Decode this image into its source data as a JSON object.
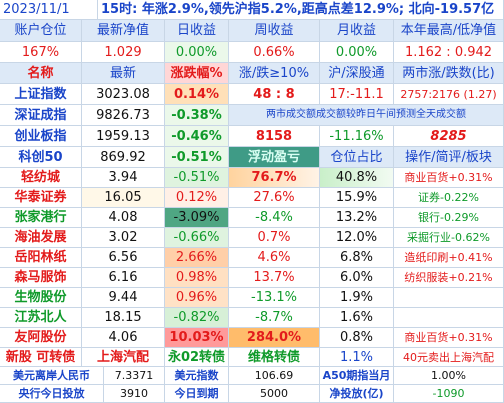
{
  "header": {
    "date": "2023/11/1",
    "summary": "15时: 年涨2.9%,领先沪指5.2%,距高点差12.9%; 北向-19.57亿"
  },
  "account": {
    "headers": [
      "账户仓位",
      "最新净值",
      "日收益",
      "周收益",
      "月收益",
      "本年最高/低净值"
    ],
    "values": [
      "167%",
      "1.029",
      "0.00%",
      "0.66%",
      "0.00%",
      "1.162 : 0.942"
    ]
  },
  "index_header": {
    "name": "名称",
    "latest": "最新",
    "change": "涨跌幅%",
    "updown10": "涨/跌≥10%",
    "hs_link": "沪/深股通",
    "two_markets": "两市涨/跌数(比)"
  },
  "indices": [
    {
      "name": "上证指数",
      "value": "3023.08",
      "change": "0.14%",
      "col4": "48 : 8",
      "col5": "17:-11.1",
      "col6": "2757:2176 (1.27)"
    },
    {
      "name": "深证成指",
      "value": "9826.73",
      "change": "-0.38%",
      "col4": "两市成交额成交额较昨日午间预测全天成交额"
    },
    {
      "name": "创业板指",
      "value": "1959.13",
      "change": "-0.46%",
      "col4": "8158",
      "col5": "-11.16%",
      "col6": "8285"
    },
    {
      "name": "科创50",
      "value": "869.92",
      "change": "-0.51%",
      "col4": "浮动盈亏",
      "col5": "仓位占比",
      "col6": "操作/简评/板块"
    }
  ],
  "stocks": [
    {
      "name": "轻纺城",
      "price": "3.94",
      "change": "-0.51%",
      "pnl": "76.7%",
      "weight": "40.8%",
      "note": "商业百货+0.31%"
    },
    {
      "name": "华泰证券",
      "price": "16.05",
      "change": "0.12%",
      "pnl": "27.6%",
      "weight": "15.9%",
      "note": "证券-0.22%"
    },
    {
      "name": "张家港行",
      "price": "4.08",
      "change": "-3.09%",
      "pnl": "-8.4%",
      "weight": "13.2%",
      "note": "银行-0.29%"
    },
    {
      "name": "海油发展",
      "price": "3.02",
      "change": "-0.66%",
      "pnl": "0.7%",
      "weight": "12.0%",
      "note": "采掘行业-0.62%"
    },
    {
      "name": "岳阳林纸",
      "price": "6.56",
      "change": "2.66%",
      "pnl": "4.6%",
      "weight": "6.8%",
      "note": "造纸印刷+0.41%"
    },
    {
      "name": "森马服饰",
      "price": "6.16",
      "change": "0.98%",
      "pnl": "13.7%",
      "weight": "6.0%",
      "note": "纺织服装+0.21%"
    },
    {
      "name": "生物股份",
      "price": "9.44",
      "change": "0.96%",
      "pnl": "-13.1%",
      "weight": "1.9%",
      "note": ""
    },
    {
      "name": "江苏北人",
      "price": "18.15",
      "change": "-0.82%",
      "pnl": "-8.7%",
      "weight": "1.6%",
      "note": ""
    },
    {
      "name": "友阿股份",
      "price": "4.06",
      "change": "10.03%",
      "pnl": "284.0%",
      "weight": "0.8%",
      "note": "商业百货+0.31%"
    }
  ],
  "bond_row": {
    "c1": "新股 可转债",
    "c2": "上海汽配",
    "c3": "永02转债",
    "c4": "维格转债",
    "c5": "1.1%",
    "c6": "40元卖出上海汽配"
  },
  "footer1": {
    "a": "美元离岸人民币",
    "b": "7.3371",
    "c": "美元指数",
    "d": "106.69",
    "e": "A50期指当月",
    "f": "1.00%"
  },
  "footer2": {
    "a": "央行今日投放",
    "b": "3910",
    "c": "今日到期",
    "d": "5000",
    "e": "净投放(亿)",
    "f": "-1090"
  }
}
